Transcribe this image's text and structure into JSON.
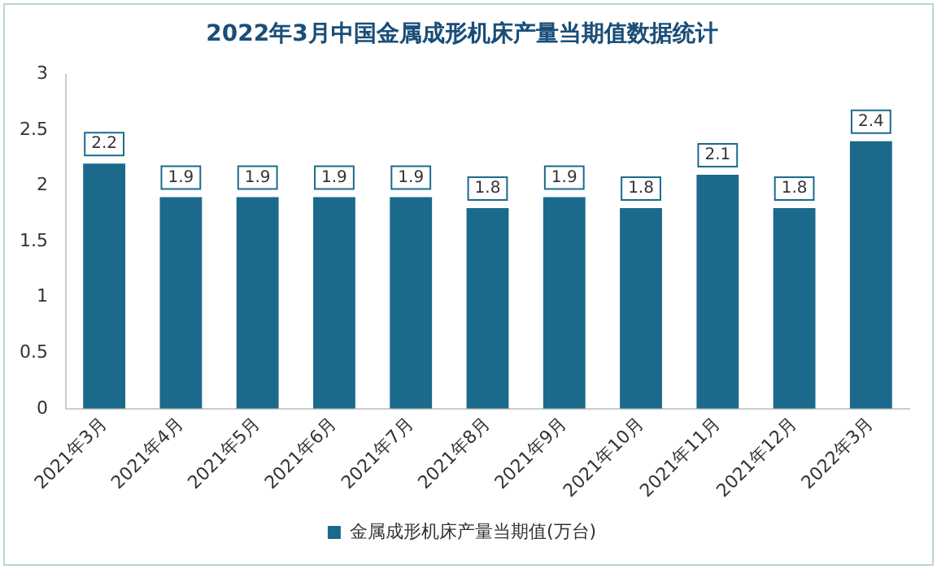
{
  "chart_data": {
    "type": "bar",
    "title": "2022年3月中国金属成形机床产量当期值数据统计",
    "categories": [
      "2021年3月",
      "2021年4月",
      "2021年5月",
      "2021年6月",
      "2021年7月",
      "2021年8月",
      "2021年9月",
      "2021年10月",
      "2021年11月",
      "2021年12月",
      "2022年3月"
    ],
    "series": [
      {
        "name": "金属成形机床产量当期值(万台)",
        "color": "#1b6a8c",
        "values": [
          2.2,
          1.9,
          1.9,
          1.9,
          1.9,
          1.8,
          1.9,
          1.8,
          2.1,
          1.8,
          2.4
        ]
      }
    ],
    "ylim": [
      0,
      3
    ],
    "yticks": [
      0,
      0.5,
      1,
      1.5,
      2,
      2.5,
      3
    ],
    "grid": false,
    "legend": "bottom",
    "data_labels": true
  }
}
